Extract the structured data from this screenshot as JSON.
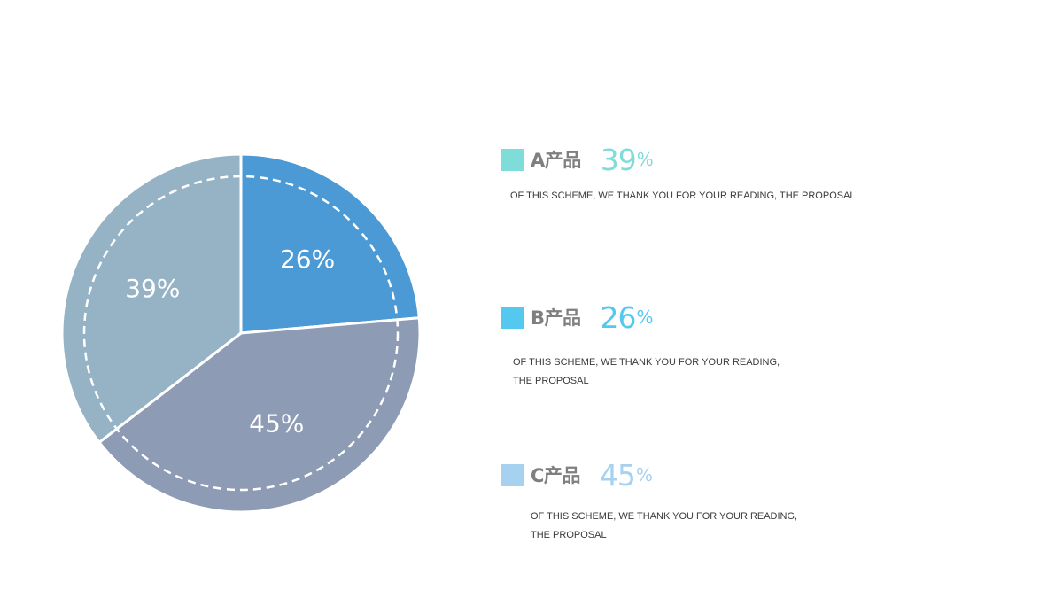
{
  "chart_data": {
    "type": "pie",
    "slices": [
      {
        "label": "A产品",
        "value": 39,
        "display": "39%",
        "color": "#96b3c6"
      },
      {
        "label": "B产品",
        "value": 26,
        "display": "26%",
        "color": "#4b9ad5"
      },
      {
        "label": "C产品",
        "value": 45,
        "display": "45%",
        "color": "#8e9bb5"
      }
    ]
  },
  "legend": [
    {
      "name": "A产品",
      "percent": "39",
      "percent_sign": "%",
      "swatch_color": "#7fdcd9",
      "percent_color": "#7fdcd9",
      "description": "OF THIS SCHEME, WE THANK YOU FOR YOUR READING, THE PROPOSAL"
    },
    {
      "name": "B产品",
      "percent": "26",
      "percent_sign": "%",
      "swatch_color": "#55c8ef",
      "percent_color": "#55c8ef",
      "description": "OF THIS SCHEME, WE THANK YOU FOR YOUR READING, THE PROPOSAL"
    },
    {
      "name": "C产品",
      "percent": "45",
      "percent_sign": "%",
      "swatch_color": "#a6d2ef",
      "percent_color": "#a6d2ef",
      "description": "OF THIS SCHEME, WE THANK YOU FOR YOUR READING, THE PROPOSAL"
    }
  ]
}
